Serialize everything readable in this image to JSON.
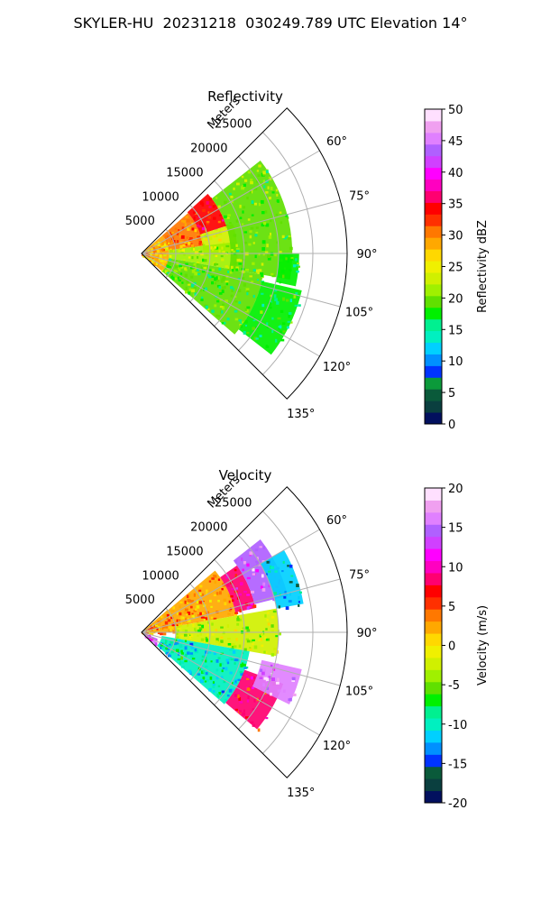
{
  "page": {
    "title": "SKYLER-HU  20231218  030249.789 UTC Elevation 14°"
  },
  "chart_data": [
    {
      "type": "heatmap",
      "subtype": "polar-ppi-sector",
      "title": "Reflectivity",
      "range_label": "Meters",
      "range_ticks": [
        5000,
        10000,
        15000,
        20000,
        25000
      ],
      "range_lim": [
        0,
        30000
      ],
      "azimuth_ticks": [
        "60°",
        "75°",
        "90°",
        "105°",
        "120°",
        "135°"
      ],
      "azimuth_values": [
        60,
        75,
        90,
        105,
        120,
        135
      ],
      "azimuth_lim": [
        45,
        135
      ],
      "grid": true,
      "colorbar": {
        "label": "Reflectivity dBZ",
        "ticks": [
          0,
          5,
          10,
          15,
          20,
          25,
          30,
          35,
          40,
          45,
          50
        ],
        "range": [
          0,
          50
        ],
        "colors": [
          "#02105e",
          "#0a3f3f",
          "#0a5a3a",
          "#0b9a3a",
          "#0033ff",
          "#0090ff",
          "#00d0ff",
          "#00f0c0",
          "#00f090",
          "#00f000",
          "#60e000",
          "#a0f000",
          "#d0f000",
          "#f0f000",
          "#ffd800",
          "#ffa800",
          "#ff7800",
          "#ff3000",
          "#ff0000",
          "#ff0070",
          "#ff00c0",
          "#ff00ff",
          "#d040ff",
          "#b060ff",
          "#e080ff",
          "#f0a0f0",
          "#ffe0ff"
        ]
      },
      "fields": [
        {
          "r0": 0,
          "r1": 4000,
          "a0": 49,
          "a1": 131,
          "value": 28
        },
        {
          "r0": 4000,
          "r1": 9000,
          "a0": 49,
          "a1": 83,
          "value": 30
        },
        {
          "r0": 9000,
          "r1": 13000,
          "a0": 48,
          "a1": 72,
          "value": 34
        },
        {
          "r0": 9000,
          "r1": 14000,
          "a0": 72,
          "a1": 90,
          "value": 24
        },
        {
          "r0": 4000,
          "r1": 14000,
          "a0": 83,
          "a1": 100,
          "value": 21
        },
        {
          "r0": 4000,
          "r1": 18000,
          "a0": 100,
          "a1": 131,
          "value": 19
        },
        {
          "r0": 13000,
          "r1": 22000,
          "a0": 52,
          "a1": 100,
          "value": 20
        },
        {
          "r0": 18000,
          "r1": 24000,
          "a0": 103,
          "a1": 128,
          "value": 18
        },
        {
          "r0": 20000,
          "r1": 23000,
          "a0": 90,
          "a1": 102,
          "value": 17
        }
      ]
    },
    {
      "type": "heatmap",
      "subtype": "polar-ppi-sector",
      "title": "Velocity",
      "range_label": "Meters",
      "range_ticks": [
        5000,
        10000,
        15000,
        20000,
        25000
      ],
      "range_lim": [
        0,
        30000
      ],
      "azimuth_ticks": [
        "60°",
        "75°",
        "90°",
        "105°",
        "120°",
        "135°"
      ],
      "azimuth_values": [
        60,
        75,
        90,
        105,
        120,
        135
      ],
      "azimuth_lim": [
        45,
        135
      ],
      "grid": true,
      "colorbar": {
        "label": "Velocity (m/s)",
        "ticks": [
          -20,
          -15,
          -10,
          -5,
          0,
          5,
          10,
          15,
          20
        ],
        "range": [
          -20,
          20
        ],
        "colors": [
          "#02105e",
          "#0a3f3f",
          "#0a5a3a",
          "#0033ff",
          "#0090ff",
          "#00d0ff",
          "#00f0c0",
          "#00f090",
          "#00f000",
          "#60e000",
          "#a0f000",
          "#d0f000",
          "#f0f000",
          "#ffd800",
          "#ffa800",
          "#ff7800",
          "#ff3000",
          "#ff0000",
          "#ff0070",
          "#ff00c0",
          "#ff00ff",
          "#d040ff",
          "#b060ff",
          "#e080ff",
          "#f0a0f0",
          "#ffe0ff"
        ]
      },
      "fields": [
        {
          "r0": 0,
          "r1": 5000,
          "a0": 49,
          "a1": 90,
          "value": 3
        },
        {
          "r0": 5000,
          "r1": 14000,
          "a0": 50,
          "a1": 80,
          "value": 3
        },
        {
          "r0": 14000,
          "r1": 17000,
          "a0": 55,
          "a1": 78,
          "value": 9
        },
        {
          "r0": 17000,
          "r1": 22000,
          "a0": 52,
          "a1": 76,
          "value": 15
        },
        {
          "r0": 5000,
          "r1": 20000,
          "a0": 80,
          "a1": 100,
          "value": -3
        },
        {
          "r0": 3000,
          "r1": 16000,
          "a0": 100,
          "a1": 131,
          "value": -10
        },
        {
          "r0": 16000,
          "r1": 22000,
          "a0": 110,
          "a1": 130,
          "value": 8
        },
        {
          "r0": 18000,
          "r1": 24000,
          "a0": 103,
          "a1": 116,
          "value": 16
        },
        {
          "r0": 0,
          "r1": 2500,
          "a0": 112,
          "a1": 131,
          "value": 14
        },
        {
          "r0": 20000,
          "r1": 24000,
          "a0": 60,
          "a1": 80,
          "value": -12
        }
      ]
    }
  ]
}
